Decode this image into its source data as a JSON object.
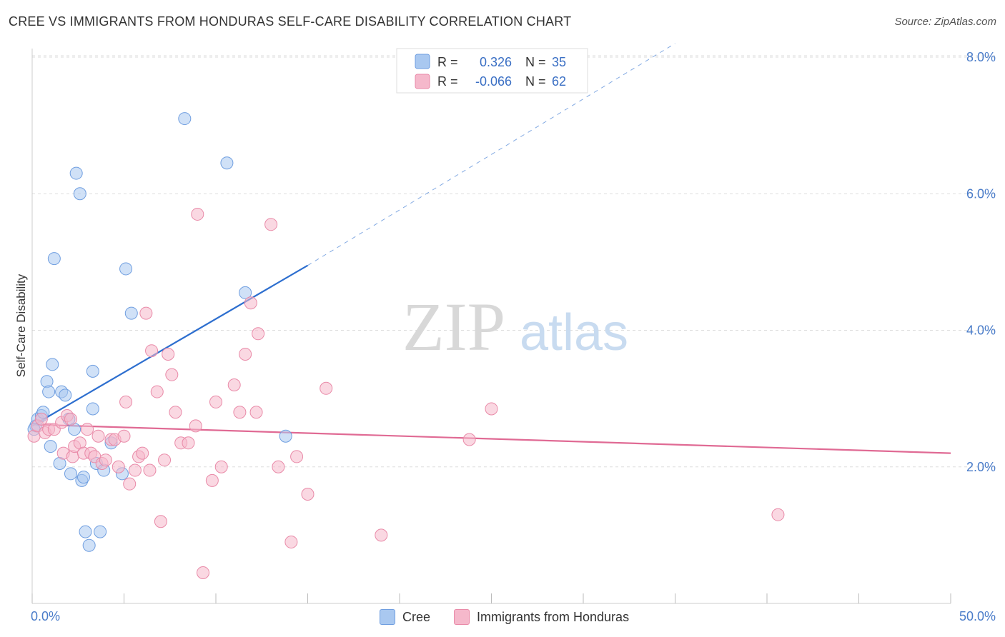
{
  "title": "CREE VS IMMIGRANTS FROM HONDURAS SELF-CARE DISABILITY CORRELATION CHART",
  "source": "Source: ZipAtlas.com",
  "watermark": {
    "zip": "ZIP",
    "atlas": "atlas"
  },
  "colors": {
    "cree_fill": "#a9c8f0",
    "cree_stroke": "#6f9ee0",
    "cree_line": "#2e6fcf",
    "honduras_fill": "#f5b8cb",
    "honduras_stroke": "#e98aa8",
    "honduras_line": "#e06a94",
    "axis_text": "#4a7cc9",
    "grid": "#dddddd"
  },
  "legend": {
    "rows": [
      {
        "r_label": "R =",
        "r_value": "0.326",
        "n_label": "N =",
        "n_value": "35"
      },
      {
        "r_label": "R =",
        "r_value": "-0.066",
        "n_label": "N =",
        "n_value": "62"
      }
    ]
  },
  "bottom_legend": [
    "Cree",
    "Immigrants from Honduras"
  ],
  "chart_data": {
    "type": "scatter",
    "xlabel": "",
    "ylabel": "Self-Care Disability",
    "xlim": [
      0,
      50
    ],
    "ylim": [
      0,
      8.0
    ],
    "x_tick_labels": [
      "0.0%",
      "50.0%"
    ],
    "y_ticks": [
      2.0,
      4.0,
      6.0,
      8.0
    ],
    "y_tick_labels": [
      "2.0%",
      "4.0%",
      "6.0%",
      "8.0%"
    ],
    "grid": true,
    "series": [
      {
        "name": "Cree",
        "points": [
          [
            0.2,
            2.6
          ],
          [
            0.3,
            2.7
          ],
          [
            0.5,
            2.75
          ],
          [
            0.6,
            2.8
          ],
          [
            0.8,
            3.25
          ],
          [
            0.9,
            3.1
          ],
          [
            1.0,
            2.3
          ],
          [
            1.1,
            3.5
          ],
          [
            1.2,
            5.05
          ],
          [
            1.5,
            2.05
          ],
          [
            1.6,
            3.1
          ],
          [
            1.8,
            3.05
          ],
          [
            2.0,
            2.7
          ],
          [
            2.1,
            1.9
          ],
          [
            2.3,
            2.55
          ],
          [
            2.4,
            6.3
          ],
          [
            2.6,
            6.0
          ],
          [
            2.7,
            1.8
          ],
          [
            2.8,
            1.85
          ],
          [
            2.9,
            1.05
          ],
          [
            3.1,
            0.85
          ],
          [
            3.3,
            3.4
          ],
          [
            3.3,
            2.85
          ],
          [
            3.5,
            2.05
          ],
          [
            3.7,
            1.05
          ],
          [
            3.9,
            1.95
          ],
          [
            4.3,
            2.35
          ],
          [
            4.9,
            1.9
          ],
          [
            5.1,
            4.9
          ],
          [
            5.4,
            4.25
          ],
          [
            8.3,
            7.1
          ],
          [
            10.6,
            6.45
          ],
          [
            11.6,
            4.55
          ],
          [
            13.8,
            2.45
          ],
          [
            0.1,
            2.55
          ]
        ],
        "trend": {
          "x0": 0,
          "y0": 2.6,
          "x1": 15,
          "y1": 4.95,
          "dash_x1": 35,
          "dash_y1": 8.2
        }
      },
      {
        "name": "Immigrants from Honduras",
        "points": [
          [
            0.1,
            2.45
          ],
          [
            0.3,
            2.6
          ],
          [
            0.5,
            2.7
          ],
          [
            0.7,
            2.5
          ],
          [
            0.9,
            2.55
          ],
          [
            1.2,
            2.55
          ],
          [
            1.6,
            2.65
          ],
          [
            1.7,
            2.2
          ],
          [
            1.9,
            2.75
          ],
          [
            2.1,
            2.7
          ],
          [
            2.2,
            2.15
          ],
          [
            2.3,
            2.3
          ],
          [
            2.6,
            2.35
          ],
          [
            2.8,
            2.2
          ],
          [
            3.0,
            2.55
          ],
          [
            3.2,
            2.2
          ],
          [
            3.4,
            2.15
          ],
          [
            3.6,
            2.45
          ],
          [
            3.8,
            2.05
          ],
          [
            4.0,
            2.1
          ],
          [
            4.3,
            2.4
          ],
          [
            4.5,
            2.4
          ],
          [
            4.7,
            2.0
          ],
          [
            5.0,
            2.45
          ],
          [
            5.1,
            2.95
          ],
          [
            5.3,
            1.75
          ],
          [
            5.6,
            1.95
          ],
          [
            5.8,
            2.15
          ],
          [
            6.0,
            2.2
          ],
          [
            6.2,
            4.25
          ],
          [
            6.4,
            1.95
          ],
          [
            6.5,
            3.7
          ],
          [
            6.8,
            3.1
          ],
          [
            7.0,
            1.2
          ],
          [
            7.2,
            2.1
          ],
          [
            7.4,
            3.65
          ],
          [
            7.6,
            3.35
          ],
          [
            7.8,
            2.8
          ],
          [
            8.1,
            2.35
          ],
          [
            8.5,
            2.35
          ],
          [
            8.9,
            2.6
          ],
          [
            9.0,
            5.7
          ],
          [
            9.3,
            0.45
          ],
          [
            9.8,
            1.8
          ],
          [
            10.0,
            2.95
          ],
          [
            10.3,
            2.0
          ],
          [
            11.0,
            3.2
          ],
          [
            11.3,
            2.8
          ],
          [
            11.6,
            3.65
          ],
          [
            11.9,
            4.4
          ],
          [
            12.2,
            2.8
          ],
          [
            12.3,
            3.95
          ],
          [
            13.0,
            5.55
          ],
          [
            13.4,
            2.0
          ],
          [
            14.1,
            0.9
          ],
          [
            14.4,
            2.15
          ],
          [
            15.0,
            1.6
          ],
          [
            16.0,
            3.15
          ],
          [
            19.0,
            1.0
          ],
          [
            23.8,
            2.4
          ],
          [
            25.0,
            2.85
          ],
          [
            40.6,
            1.3
          ]
        ],
        "trend": {
          "x0": 0,
          "y0": 2.62,
          "x1": 50,
          "y1": 2.2
        }
      }
    ]
  }
}
